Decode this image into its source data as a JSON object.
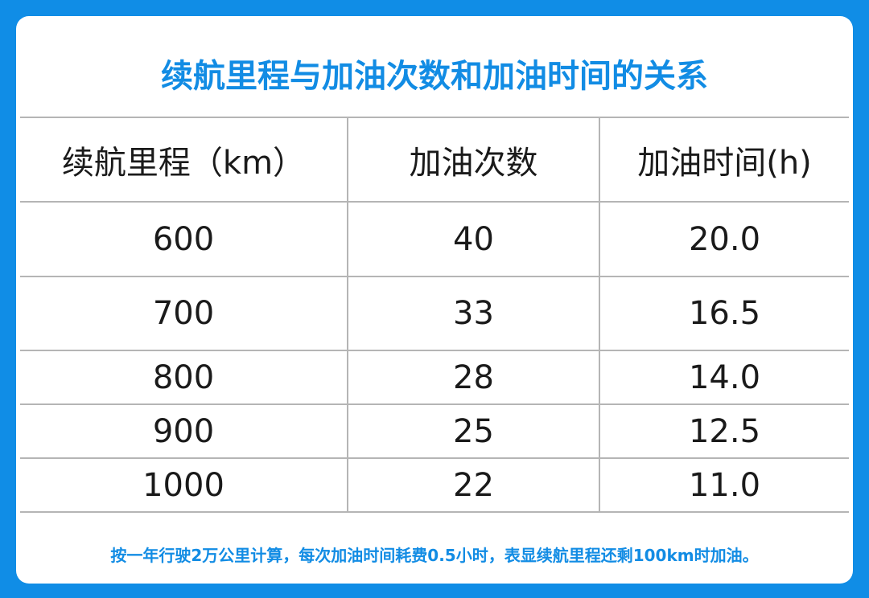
{
  "header": {
    "title": "续航里程与加油次数和加油时间的关系"
  },
  "table": {
    "columns": [
      "续航里程（km）",
      "加油次数",
      "加油时间(h)"
    ],
    "rows": [
      [
        "600",
        "40",
        "20.0"
      ],
      [
        "700",
        "33",
        "16.5"
      ],
      [
        "800",
        "28",
        "14.0"
      ],
      [
        "900",
        "25",
        "12.5"
      ],
      [
        "1000",
        "22",
        "11.0"
      ]
    ]
  },
  "footnote": "按一年行驶2万公里计算，每次加油时间耗费0.5小时，表显续航里程还剩100km时加油。"
}
